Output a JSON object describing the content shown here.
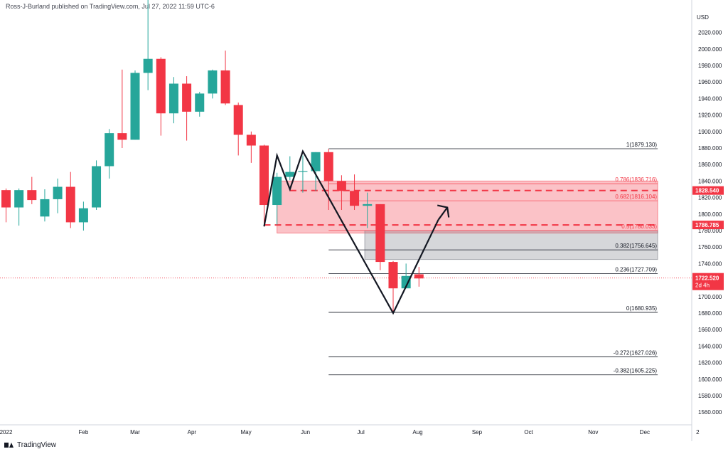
{
  "header": {
    "published": "Ross-J-Burland published on TradingView.com, Jul 27, 2022 11:59 UTC-6"
  },
  "footer": {
    "brand": "TradingView"
  },
  "colors": {
    "up": "#26a69a",
    "down": "#f23645",
    "zone_red": "#f23645",
    "zone_grey": "#9598a1",
    "fib": "#131722"
  },
  "chart_data": {
    "type": "candlestick",
    "currency": "USD",
    "y_ticks": [
      1560,
      1580,
      1600,
      1620,
      1640,
      1660,
      1680,
      1700,
      1720,
      1740,
      1760,
      1780,
      1800,
      1820,
      1840,
      1860,
      1880,
      1900,
      1920,
      1940,
      1960,
      1980,
      2000,
      2020
    ],
    "ylim": [
      1545,
      2040
    ],
    "x_labels": [
      {
        "label": "2022",
        "week": 0
      },
      {
        "label": "Feb",
        "week": 6
      },
      {
        "label": "Mar",
        "week": 10
      },
      {
        "label": "Apr",
        "week": 14.4
      },
      {
        "label": "May",
        "week": 18.6
      },
      {
        "label": "Jun",
        "week": 23.2
      },
      {
        "label": "Jul",
        "week": 27.5
      },
      {
        "label": "Aug",
        "week": 31.9
      },
      {
        "label": "Sep",
        "week": 36.5
      },
      {
        "label": "Oct",
        "week": 40.5
      },
      {
        "label": "Nov",
        "week": 45.5
      },
      {
        "label": "Dec",
        "week": 49.5
      },
      {
        "label": "2",
        "week": 53.6
      }
    ],
    "candles": [
      {
        "week": 0,
        "o": 1829,
        "h": 1831,
        "l": 1790,
        "c": 1808
      },
      {
        "week": 1,
        "o": 1808,
        "h": 1831,
        "l": 1786,
        "c": 1829
      },
      {
        "week": 2,
        "o": 1829,
        "h": 1845,
        "l": 1812,
        "c": 1817
      },
      {
        "week": 3,
        "o": 1797,
        "h": 1830,
        "l": 1791,
        "c": 1818
      },
      {
        "week": 4,
        "o": 1818,
        "h": 1843,
        "l": 1801,
        "c": 1833
      },
      {
        "week": 5,
        "o": 1833,
        "h": 1851,
        "l": 1783,
        "c": 1790
      },
      {
        "week": 6,
        "o": 1790,
        "h": 1815,
        "l": 1780,
        "c": 1807
      },
      {
        "week": 7,
        "o": 1808,
        "h": 1865,
        "l": 1805,
        "c": 1858
      },
      {
        "week": 8,
        "o": 1858,
        "h": 1903,
        "l": 1843,
        "c": 1898
      },
      {
        "week": 9,
        "o": 1898,
        "h": 1975,
        "l": 1880,
        "c": 1890
      },
      {
        "week": 10,
        "o": 1890,
        "h": 1974,
        "l": 1890,
        "c": 1971
      },
      {
        "week": 11,
        "o": 1971,
        "h": 2070,
        "l": 1950,
        "c": 1988
      },
      {
        "week": 12,
        "o": 1988,
        "h": 1990,
        "l": 1895,
        "c": 1922
      },
      {
        "week": 13,
        "o": 1922,
        "h": 1966,
        "l": 1910,
        "c": 1958
      },
      {
        "week": 14,
        "o": 1958,
        "h": 1967,
        "l": 1889,
        "c": 1924
      },
      {
        "week": 15,
        "o": 1924,
        "h": 1948,
        "l": 1918,
        "c": 1946
      },
      {
        "week": 16,
        "o": 1946,
        "h": 1975,
        "l": 1940,
        "c": 1974
      },
      {
        "week": 17,
        "o": 1974,
        "h": 1998,
        "l": 1932,
        "c": 1934
      },
      {
        "week": 18,
        "o": 1932,
        "h": 1935,
        "l": 1871,
        "c": 1896
      },
      {
        "week": 19,
        "o": 1896,
        "h": 1900,
        "l": 1862,
        "c": 1883
      },
      {
        "week": 20,
        "o": 1883,
        "h": 1884,
        "l": 1785,
        "c": 1811
      },
      {
        "week": 21,
        "o": 1811,
        "h": 1850,
        "l": 1787,
        "c": 1845
      },
      {
        "week": 22,
        "o": 1845,
        "h": 1870,
        "l": 1841,
        "c": 1851
      },
      {
        "week": 23,
        "o": 1851,
        "h": 1871,
        "l": 1826,
        "c": 1852
      },
      {
        "week": 24,
        "o": 1852,
        "h": 1875,
        "l": 1828,
        "c": 1875
      },
      {
        "week": 25,
        "o": 1875,
        "h": 1879,
        "l": 1805,
        "c": 1840
      },
      {
        "week": 26,
        "o": 1840,
        "h": 1847,
        "l": 1805,
        "c": 1828
      },
      {
        "week": 27,
        "o": 1828,
        "h": 1848,
        "l": 1805,
        "c": 1810
      },
      {
        "week": 28,
        "o": 1810,
        "h": 1826,
        "l": 1783,
        "c": 1812
      },
      {
        "week": 29,
        "o": 1812,
        "h": 1812,
        "l": 1732,
        "c": 1742
      },
      {
        "week": 30,
        "o": 1742,
        "h": 1743,
        "l": 1681,
        "c": 1710
      },
      {
        "week": 31,
        "o": 1710,
        "h": 1740,
        "l": 1710,
        "c": 1725
      },
      {
        "week": 32,
        "o": 1727,
        "h": 1736,
        "l": 1712,
        "c": 1722
      }
    ],
    "fib_levels": [
      {
        "label": "1(1879.130)",
        "value": 1879.13
      },
      {
        "label": "0.786(1836.716)",
        "value": 1836.716
      },
      {
        "label": "0.682(1816.104)",
        "value": 1816.104
      },
      {
        "label": "0.5(1780.033)",
        "value": 1780.033
      },
      {
        "label": "0.382(1756.645)",
        "value": 1756.645
      },
      {
        "label": "0.236(1727.709)",
        "value": 1727.709
      },
      {
        "label": "0(1680.935)",
        "value": 1680.935
      },
      {
        "label": "-0.272(1627.026)",
        "value": 1627.026
      },
      {
        "label": "-0.382(1605.225)",
        "value": 1605.225
      }
    ],
    "fib_start_week": 25,
    "fib_end_week": 50.5,
    "zones": [
      {
        "kind": "red",
        "week_start": 21,
        "week_end": 50.5,
        "top": 1840,
        "bottom": 1777
      },
      {
        "kind": "grey",
        "week_start": 27.8,
        "week_end": 50.5,
        "top": 1780,
        "bottom": 1745
      }
    ],
    "dashed_levels": [
      {
        "value": 1828.54,
        "week_start": 22,
        "week_end": 50.5
      },
      {
        "value": 1786.785,
        "week_start": 20,
        "week_end": 50.5
      }
    ],
    "pattern_path": [
      {
        "week": 20,
        "value": 1785
      },
      {
        "week": 21,
        "value": 1871
      },
      {
        "week": 22,
        "value": 1830
      },
      {
        "week": 23,
        "value": 1876
      },
      {
        "week": 30,
        "value": 1680
      },
      {
        "week": 33.5,
        "value": 1793
      }
    ],
    "arrow_head_week": 34.2,
    "arrow_head_value": 1808,
    "current_price": {
      "value": 1722.52,
      "label": "1722.520",
      "countdown": "2d 4h"
    },
    "price_tags": [
      {
        "value": 1828.54,
        "label": "1828.540"
      },
      {
        "value": 1786.785,
        "label": "1786.785"
      }
    ]
  }
}
